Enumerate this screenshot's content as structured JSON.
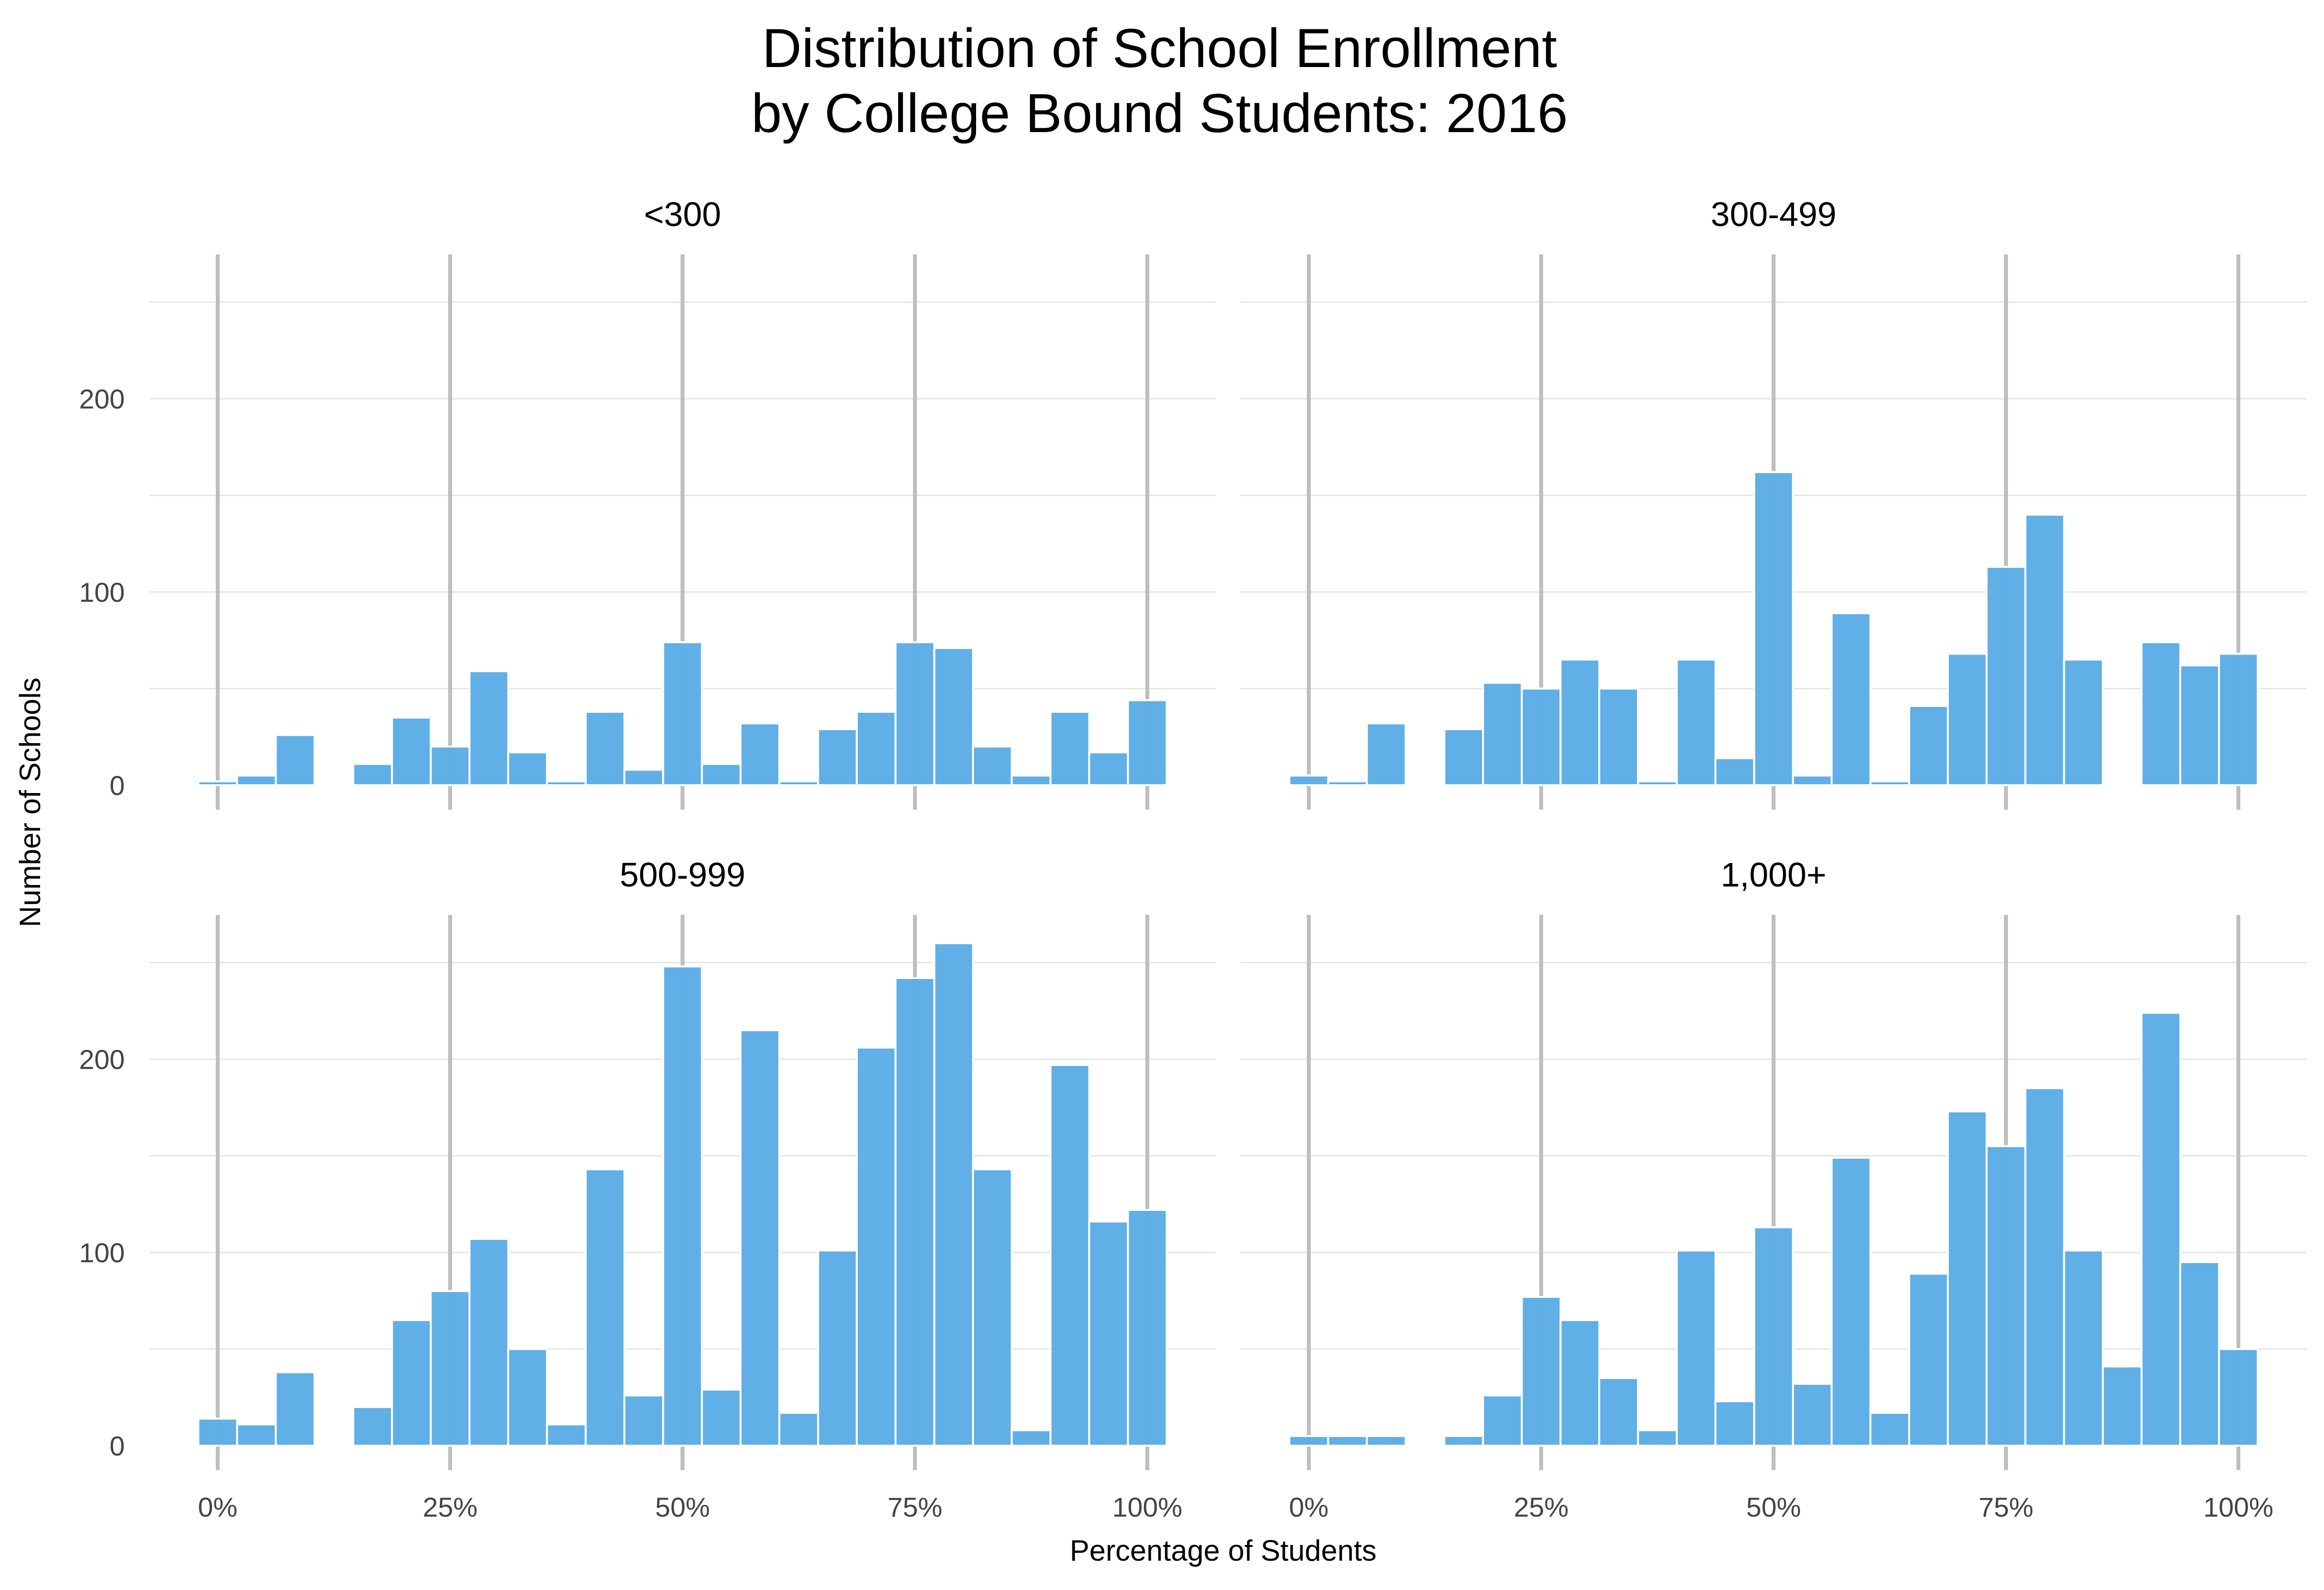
{
  "chart_data": {
    "type": "bar",
    "title": [
      "Distribution of School Enrollment",
      "by College Bound Students: 2016"
    ],
    "xlabel": "Percentage of Students",
    "ylabel": "Number of Schools",
    "bar_color": "#5DADE6",
    "grid_color": "#E6E6E6",
    "ref_line_color": "#BEBEBE",
    "x": [
      0,
      4.17,
      8.33,
      12.5,
      16.67,
      20.83,
      25,
      29.17,
      33.33,
      37.5,
      41.67,
      45.83,
      50,
      54.17,
      58.33,
      62.5,
      66.67,
      70.83,
      75,
      79.17,
      83.33,
      87.5,
      91.67,
      95.83,
      100
    ],
    "bin_width": 4.17,
    "x_ticks": [
      0,
      25,
      50,
      75,
      100
    ],
    "x_tick_labels": [
      "0%",
      "25%",
      "50%",
      "75%",
      "100%"
    ],
    "ylim": [
      0,
      275
    ],
    "y_ticks": [
      0,
      100,
      200
    ],
    "y_tick_labels": [
      "0",
      "100",
      "200"
    ],
    "panels": [
      {
        "label": "<300",
        "values": [
          2,
          5,
          26,
          0,
          11,
          35,
          20,
          59,
          17,
          2,
          38,
          8,
          74,
          11,
          32,
          2,
          29,
          38,
          74,
          71,
          20,
          5,
          38,
          17,
          44
        ]
      },
      {
        "label": "300-499",
        "values": [
          5,
          2,
          32,
          0,
          29,
          53,
          50,
          65,
          50,
          2,
          65,
          14,
          162,
          5,
          89,
          2,
          41,
          68,
          113,
          140,
          65,
          0,
          74,
          62,
          68
        ]
      },
      {
        "label": "500-999",
        "values": [
          14,
          11,
          38,
          0,
          20,
          65,
          80,
          107,
          50,
          11,
          143,
          26,
          248,
          29,
          215,
          17,
          101,
          206,
          242,
          260,
          143,
          8,
          197,
          116,
          122
        ]
      },
      {
        "label": "1,000+",
        "values": [
          5,
          5,
          5,
          0,
          5,
          26,
          77,
          65,
          35,
          8,
          101,
          23,
          113,
          32,
          149,
          17,
          89,
          173,
          155,
          185,
          101,
          41,
          224,
          95,
          50
        ]
      }
    ]
  }
}
